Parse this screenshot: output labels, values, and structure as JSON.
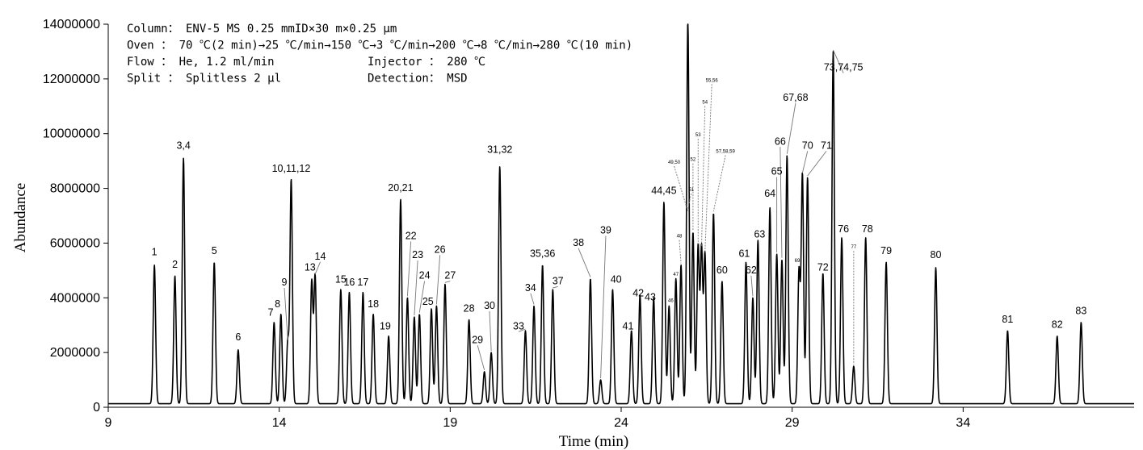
{
  "chart_data": {
    "type": "line",
    "xlabel": "Time (min)",
    "ylabel": "Abundance",
    "xlim": [
      9,
      39
    ],
    "ylim": [
      0,
      14000000
    ],
    "x_ticks": [
      9,
      14,
      19,
      24,
      29,
      34
    ],
    "y_ticks": [
      0,
      2000000,
      4000000,
      6000000,
      8000000,
      10000000,
      12000000,
      14000000
    ],
    "x_tick_labels": [
      "9",
      "14",
      "19",
      "24",
      "29",
      "34"
    ],
    "y_tick_labels": [
      "0",
      "2000000",
      "4000000",
      "6000000",
      "8000000",
      "10000000",
      "12000000",
      "14000000"
    ],
    "grid": false,
    "line_color": "#000000",
    "baseline": 130000,
    "info": [
      "Column： ENV-5 MS  0.25 mmID×30 m×0.25 μm",
      "Oven   ： 70 ℃(2 min)→25 ℃/min→150 ℃→3 ℃/min→200 ℃→8 ℃/min→280 ℃(10 min)",
      "Flow   ： He, 1.2 ml/min",
      "Split  ： Splitless 2 μl"
    ],
    "info_right": [
      "Injector ： 280 ℃",
      "Detection： MSD"
    ],
    "peaks": [
      {
        "label": "1",
        "x": 10.35,
        "y": 5200000,
        "lx": 10.35,
        "ly": 5550000
      },
      {
        "label": "2",
        "x": 10.95,
        "y": 4800000,
        "lx": 10.95,
        "ly": 5100000
      },
      {
        "label": "3,4",
        "x": 11.2,
        "y": 9100000,
        "lx": 11.2,
        "ly": 9450000
      },
      {
        "label": "5",
        "x": 12.1,
        "y": 5300000,
        "lx": 12.1,
        "ly": 5600000
      },
      {
        "label": "6",
        "x": 12.8,
        "y": 2100000,
        "lx": 12.8,
        "ly": 2450000
      },
      {
        "label": "7",
        "x": 13.85,
        "y": 3100000,
        "lx": 13.75,
        "ly": 3350000
      },
      {
        "label": "8",
        "x": 14.05,
        "y": 3400000,
        "lx": 13.95,
        "ly": 3650000
      },
      {
        "label": "9",
        "x": 14.25,
        "y": 2400000,
        "lx": 14.15,
        "ly": 4450000
      },
      {
        "label": "10,11,12",
        "x": 14.35,
        "y": 8300000,
        "lx": 14.35,
        "ly": 8600000
      },
      {
        "label": "13",
        "x": 14.95,
        "y": 4600000,
        "lx": 14.9,
        "ly": 5000000
      },
      {
        "label": "14",
        "x": 15.05,
        "y": 4800000,
        "lx": 15.2,
        "ly": 5400000
      },
      {
        "label": "15",
        "x": 15.8,
        "y": 4300000,
        "lx": 15.8,
        "ly": 4550000
      },
      {
        "label": "16",
        "x": 16.05,
        "y": 4200000,
        "lx": 16.05,
        "ly": 4450000
      },
      {
        "label": "17",
        "x": 16.45,
        "y": 4200000,
        "lx": 16.45,
        "ly": 4450000
      },
      {
        "label": "18",
        "x": 16.75,
        "y": 3400000,
        "lx": 16.75,
        "ly": 3650000
      },
      {
        "label": "19",
        "x": 17.2,
        "y": 2600000,
        "lx": 17.1,
        "ly": 2850000
      },
      {
        "label": "20,21",
        "x": 17.55,
        "y": 7600000,
        "lx": 17.55,
        "ly": 7900000
      },
      {
        "label": "22",
        "x": 17.75,
        "y": 4000000,
        "lx": 17.85,
        "ly": 6150000
      },
      {
        "label": "23",
        "x": 17.95,
        "y": 3300000,
        "lx": 18.05,
        "ly": 5450000
      },
      {
        "label": "24",
        "x": 18.1,
        "y": 3400000,
        "lx": 18.25,
        "ly": 4700000
      },
      {
        "label": "25",
        "x": 18.45,
        "y": 3600000,
        "lx": 18.35,
        "ly": 3750000
      },
      {
        "label": "26",
        "x": 18.6,
        "y": 3700000,
        "lx": 18.7,
        "ly": 5650000
      },
      {
        "label": "27",
        "x": 18.85,
        "y": 4500000,
        "lx": 19.0,
        "ly": 4700000
      },
      {
        "label": "28",
        "x": 19.55,
        "y": 3200000,
        "lx": 19.55,
        "ly": 3500000
      },
      {
        "label": "29",
        "x": 20.0,
        "y": 1300000,
        "lx": 19.8,
        "ly": 2350000
      },
      {
        "label": "30",
        "x": 20.2,
        "y": 2000000,
        "lx": 20.15,
        "ly": 3600000
      },
      {
        "label": "31,32",
        "x": 20.45,
        "y": 8800000,
        "lx": 20.45,
        "ly": 9300000
      },
      {
        "label": "33",
        "x": 21.2,
        "y": 2800000,
        "lx": 21.0,
        "ly": 2850000
      },
      {
        "label": "34",
        "x": 21.45,
        "y": 3700000,
        "lx": 21.35,
        "ly": 4250000
      },
      {
        "label": "35,36",
        "x": 21.7,
        "y": 5200000,
        "lx": 21.7,
        "ly": 5500000
      },
      {
        "label": "37",
        "x": 22.0,
        "y": 4300000,
        "lx": 22.15,
        "ly": 4500000
      },
      {
        "label": "38",
        "x": 23.1,
        "y": 4700000,
        "lx": 22.75,
        "ly": 5900000
      },
      {
        "label": "39",
        "x": 23.4,
        "y": 1000000,
        "lx": 23.55,
        "ly": 6350000
      },
      {
        "label": "40",
        "x": 23.75,
        "y": 4300000,
        "lx": 23.85,
        "ly": 4550000
      },
      {
        "label": "41",
        "x": 24.3,
        "y": 2800000,
        "lx": 24.2,
        "ly": 2850000
      },
      {
        "label": "42",
        "x": 24.55,
        "y": 4100000,
        "lx": 24.5,
        "ly": 4050000
      },
      {
        "label": "43",
        "x": 24.95,
        "y": 4000000,
        "lx": 24.85,
        "ly": 3900000
      },
      {
        "label": "44,45",
        "x": 25.25,
        "y": 7500000,
        "lx": 25.25,
        "ly": 7800000
      },
      {
        "label": "46",
        "x": 25.4,
        "y": 3700000,
        "lx": 25.45,
        "ly": 3850000,
        "small": true
      },
      {
        "label": "47",
        "x": 25.6,
        "y": 4700000,
        "lx": 25.6,
        "ly": 4800000,
        "small": true
      },
      {
        "label": "48",
        "x": 25.75,
        "y": 5200000,
        "lx": 25.7,
        "ly": 6200000,
        "small": true
      },
      {
        "label": "49,50",
        "x": 25.95,
        "y": 7100000,
        "lx": 25.55,
        "ly": 8900000,
        "small": true
      },
      {
        "label": "51",
        "x": 25.95,
        "y": 7200000,
        "lx": 26.05,
        "ly": 7900000,
        "small": true
      },
      {
        "label": "52",
        "x": 26.1,
        "y": 6400000,
        "lx": 26.1,
        "ly": 9000000,
        "small": true
      },
      {
        "label": "53",
        "x": 26.25,
        "y": 5900000,
        "lx": 26.25,
        "ly": 9900000,
        "small": true
      },
      {
        "label": "54",
        "x": 26.35,
        "y": 5800000,
        "lx": 26.45,
        "ly": 11100000,
        "small": true
      },
      {
        "label": "55,56",
        "x": 26.45,
        "y": 5600000,
        "lx": 26.65,
        "ly": 11900000,
        "small": true
      },
      {
        "label": "57,58,59",
        "x": 26.7,
        "y": 7100000,
        "lx": 27.05,
        "ly": 9300000,
        "small": true
      },
      {
        "label": "60",
        "x": 26.95,
        "y": 4600000,
        "lx": 26.95,
        "ly": 4900000
      },
      {
        "label": "61",
        "x": 27.65,
        "y": 5300000,
        "lx": 27.6,
        "ly": 5500000
      },
      {
        "label": "62",
        "x": 27.85,
        "y": 4000000,
        "lx": 27.8,
        "ly": 4900000
      },
      {
        "label": "63",
        "x": 28.0,
        "y": 6100000,
        "lx": 28.05,
        "ly": 6200000
      },
      {
        "label": "64",
        "x": 28.35,
        "y": 7300000,
        "lx": 28.35,
        "ly": 7700000
      },
      {
        "label": "65",
        "x": 28.55,
        "y": 5600000,
        "lx": 28.55,
        "ly": 8500000
      },
      {
        "label": "66",
        "x": 28.7,
        "y": 5400000,
        "lx": 28.65,
        "ly": 9600000
      },
      {
        "label": "67,68",
        "x": 28.85,
        "y": 9200000,
        "lx": 29.1,
        "ly": 11200000
      },
      {
        "label": "69",
        "x": 29.2,
        "y": 5000000,
        "lx": 29.15,
        "ly": 5300000,
        "small": true
      },
      {
        "label": "70",
        "x": 29.3,
        "y": 8500000,
        "lx": 29.45,
        "ly": 9450000
      },
      {
        "label": "71",
        "x": 29.45,
        "y": 8400000,
        "lx": 30.0,
        "ly": 9450000
      },
      {
        "label": "72",
        "x": 29.9,
        "y": 4900000,
        "lx": 29.9,
        "ly": 5000000
      },
      {
        "label": "73,74,75",
        "x": 30.2,
        "y": 13000000,
        "lx": 30.5,
        "ly": 12300000
      },
      {
        "label": "76",
        "x": 30.45,
        "y": 6200000,
        "lx": 30.5,
        "ly": 6400000
      },
      {
        "label": "77",
        "x": 30.8,
        "y": 1500000,
        "lx": 30.8,
        "ly": 5800000,
        "small": true
      },
      {
        "label": "78",
        "x": 31.15,
        "y": 6200000,
        "lx": 31.2,
        "ly": 6400000
      },
      {
        "label": "79",
        "x": 31.75,
        "y": 5300000,
        "lx": 31.75,
        "ly": 5600000
      },
      {
        "label": "80",
        "x": 33.2,
        "y": 5100000,
        "lx": 33.2,
        "ly": 5450000
      },
      {
        "label": "81",
        "x": 35.3,
        "y": 2800000,
        "lx": 35.3,
        "ly": 3100000
      },
      {
        "label": "82",
        "x": 36.75,
        "y": 2600000,
        "lx": 36.75,
        "ly": 2900000
      },
      {
        "label": "83",
        "x": 37.45,
        "y": 3100000,
        "lx": 37.45,
        "ly": 3400000
      }
    ]
  }
}
